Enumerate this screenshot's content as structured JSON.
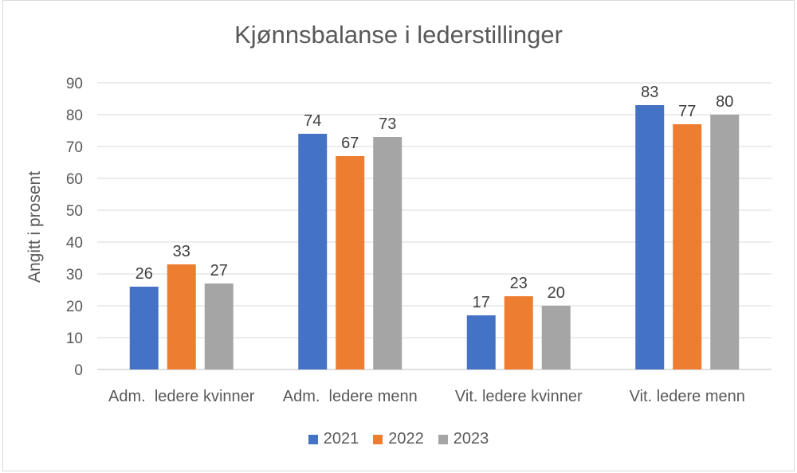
{
  "chart_data": {
    "type": "bar",
    "title": "Kjønnsbalanse i lederstillinger",
    "ylabel": "Angitt i prosent",
    "xlabel": "",
    "ylim": [
      0,
      90
    ],
    "yticks": [
      "0",
      "10",
      "20",
      "30",
      "40",
      "50",
      "60",
      "70",
      "80",
      "90"
    ],
    "categories": [
      "Adm.  ledere kvinner",
      "Adm.  ledere menn",
      "Vit. ledere kvinner",
      "Vit. ledere menn"
    ],
    "series": [
      {
        "name": "2021",
        "color": "#4472c4",
        "values": [
          26,
          74,
          17,
          83
        ]
      },
      {
        "name": "2022",
        "color": "#ed7d31",
        "values": [
          33,
          67,
          23,
          77
        ]
      },
      {
        "name": "2023",
        "color": "#a5a5a5",
        "values": [
          27,
          73,
          20,
          80
        ]
      }
    ],
    "grid": true,
    "legend_position": "bottom"
  }
}
